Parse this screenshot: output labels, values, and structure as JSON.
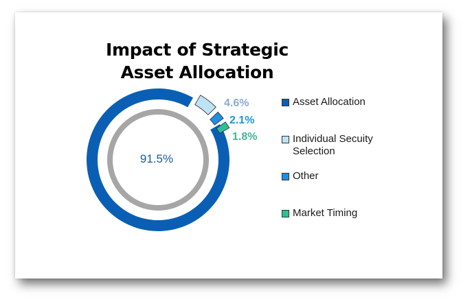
{
  "chart_data": {
    "type": "pie",
    "title": "Impact of Strategic Asset Allocation",
    "categories": [
      "Asset Allocation",
      "Individual Secuity Selection",
      "Other",
      "Market Timing"
    ],
    "values": [
      91.5,
      4.6,
      2.1,
      1.8
    ],
    "labels": [
      "91.5%",
      "4.6%",
      "2.1%",
      "1.8%"
    ],
    "colors": [
      "#0a5fb4",
      "#bde3f5",
      "#1f8fe0",
      "#2dbf98"
    ],
    "label_colors": [
      "#1a5a99",
      "#8aabd6",
      "#1e9ad6",
      "#3cb89a"
    ],
    "legend_position": "right"
  }
}
